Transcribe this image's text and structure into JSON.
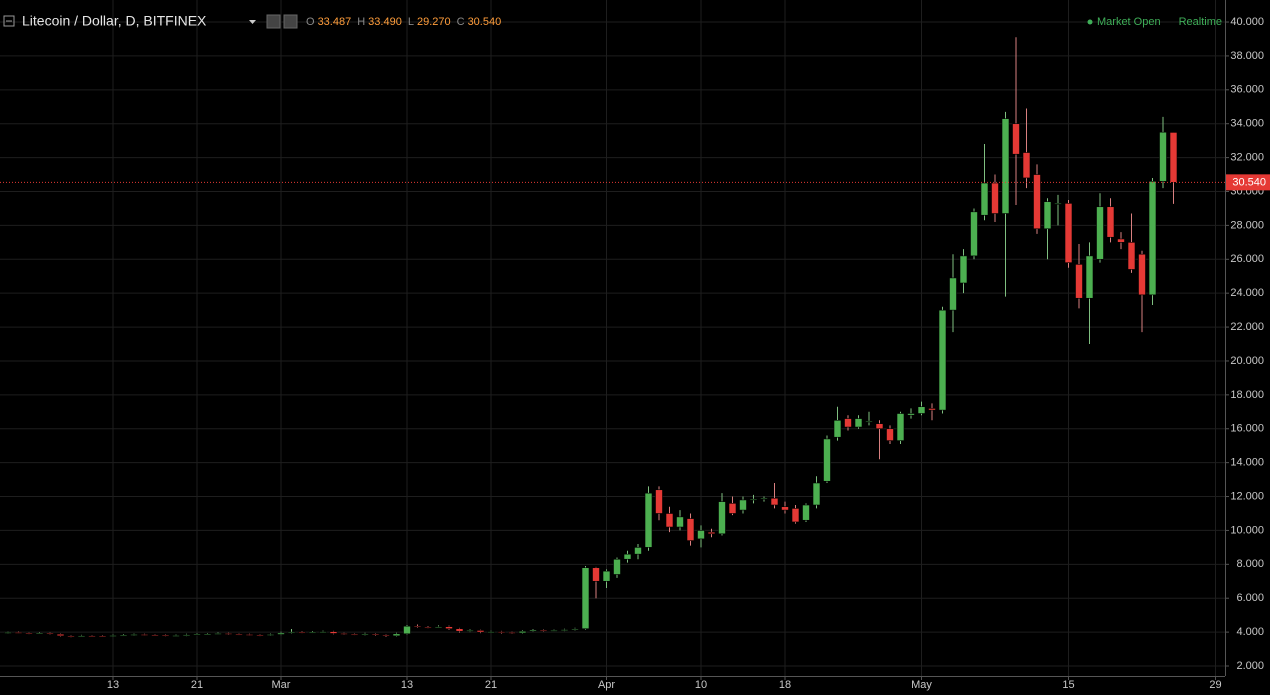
{
  "chart_data": {
    "type": "candlestick",
    "title": "Litecoin / Dollar, D, BITFINEX",
    "status": "Market Open",
    "feed": "Realtime",
    "ohlc_keys": [
      "O",
      "H",
      "L",
      "C"
    ],
    "ohlc_labels": [
      "33.487",
      "33.490",
      "29.270",
      "30.540"
    ],
    "last_price": {
      "value": 30.54,
      "label": "30.540"
    },
    "up_color": "#4caf50",
    "down_color": "#e53935",
    "grid": true,
    "ylim": [
      1.41,
      41.3
    ],
    "yticks": [
      {
        "value": 2,
        "label": "2.000"
      },
      {
        "value": 4,
        "label": "4.000"
      },
      {
        "value": 6,
        "label": "6.000"
      },
      {
        "value": 8,
        "label": "8.000"
      },
      {
        "value": 10,
        "label": "10.000"
      },
      {
        "value": 12,
        "label": "12.000"
      },
      {
        "value": 14,
        "label": "14.000"
      },
      {
        "value": 16,
        "label": "16.000"
      },
      {
        "value": 18,
        "label": "18.000"
      },
      {
        "value": 20,
        "label": "20.000"
      },
      {
        "value": 22,
        "label": "22.000"
      },
      {
        "value": 24,
        "label": "24.000"
      },
      {
        "value": 26,
        "label": "26.000"
      },
      {
        "value": 28,
        "label": "28.000"
      },
      {
        "value": 30,
        "label": "30.000"
      },
      {
        "value": 32,
        "label": "32.000"
      },
      {
        "value": 34,
        "label": "34.000"
      },
      {
        "value": 36,
        "label": "36.000"
      },
      {
        "value": 38,
        "label": "38.000"
      },
      {
        "value": 40,
        "label": "40.000"
      }
    ],
    "categories": [
      null,
      null,
      null,
      null,
      null,
      null,
      null,
      null,
      null,
      null,
      "13",
      null,
      null,
      null,
      null,
      null,
      null,
      null,
      "21",
      null,
      null,
      null,
      null,
      null,
      null,
      null,
      "Mar",
      null,
      null,
      null,
      null,
      null,
      null,
      null,
      null,
      null,
      null,
      null,
      "13",
      null,
      null,
      null,
      null,
      null,
      null,
      null,
      "21",
      null,
      null,
      null,
      null,
      null,
      null,
      null,
      null,
      null,
      null,
      "Apr",
      null,
      null,
      null,
      null,
      null,
      null,
      null,
      null,
      "10",
      null,
      null,
      null,
      null,
      null,
      null,
      null,
      "18",
      null,
      null,
      null,
      null,
      null,
      null,
      null,
      null,
      null,
      null,
      null,
      null,
      "May",
      null,
      null,
      null,
      null,
      null,
      null,
      null,
      null,
      null,
      null,
      null,
      null,
      null,
      "15",
      null,
      null,
      null,
      null,
      null,
      null,
      null,
      null,
      null,
      null,
      null,
      null,
      null,
      "29"
    ],
    "ohlc": [
      [
        3.95,
        4.02,
        3.9,
        3.98
      ],
      [
        3.98,
        4.03,
        3.92,
        3.96
      ],
      [
        3.96,
        4.0,
        3.88,
        3.92
      ],
      [
        3.92,
        3.98,
        3.87,
        3.93
      ],
      [
        3.93,
        3.97,
        3.84,
        3.88
      ],
      [
        3.88,
        3.92,
        3.74,
        3.78
      ],
      [
        3.78,
        3.82,
        3.7,
        3.75
      ],
      [
        3.75,
        3.84,
        3.72,
        3.79
      ],
      [
        3.79,
        3.83,
        3.73,
        3.78
      ],
      [
        3.78,
        3.82,
        3.71,
        3.76
      ],
      [
        3.76,
        3.85,
        3.72,
        3.8
      ],
      [
        3.8,
        3.87,
        3.76,
        3.82
      ],
      [
        3.82,
        3.91,
        3.78,
        3.86
      ],
      [
        3.86,
        3.9,
        3.79,
        3.84
      ],
      [
        3.84,
        3.88,
        3.77,
        3.82
      ],
      [
        3.82,
        3.86,
        3.73,
        3.78
      ],
      [
        3.78,
        3.85,
        3.74,
        3.8
      ],
      [
        3.8,
        3.9,
        3.76,
        3.85
      ],
      [
        3.85,
        3.92,
        3.81,
        3.87
      ],
      [
        3.87,
        3.95,
        3.83,
        3.9
      ],
      [
        3.9,
        3.98,
        3.86,
        3.92
      ],
      [
        3.92,
        3.96,
        3.83,
        3.88
      ],
      [
        3.88,
        3.92,
        3.81,
        3.86
      ],
      [
        3.86,
        3.9,
        3.79,
        3.84
      ],
      [
        3.84,
        3.88,
        3.76,
        3.82
      ],
      [
        3.82,
        3.91,
        3.78,
        3.86
      ],
      [
        3.86,
        4.02,
        3.82,
        3.95
      ],
      [
        3.95,
        4.18,
        3.9,
        4.0
      ],
      [
        4.0,
        4.05,
        3.92,
        3.98
      ],
      [
        3.98,
        4.06,
        3.94,
        4.0
      ],
      [
        4.0,
        4.09,
        3.96,
        4.03
      ],
      [
        4.03,
        4.07,
        3.87,
        3.92
      ],
      [
        3.92,
        3.96,
        3.83,
        3.88
      ],
      [
        3.88,
        3.92,
        3.8,
        3.85
      ],
      [
        3.85,
        3.96,
        3.81,
        3.9
      ],
      [
        3.9,
        3.94,
        3.79,
        3.84
      ],
      [
        3.84,
        3.88,
        3.72,
        3.78
      ],
      [
        3.78,
        3.96,
        3.74,
        3.9
      ],
      [
        3.9,
        4.42,
        3.86,
        4.35
      ],
      [
        4.35,
        4.45,
        4.24,
        4.3
      ],
      [
        4.3,
        4.36,
        4.22,
        4.28
      ],
      [
        4.28,
        4.4,
        4.24,
        4.32
      ],
      [
        4.32,
        4.38,
        4.14,
        4.2
      ],
      [
        4.2,
        4.25,
        3.98,
        4.05
      ],
      [
        4.05,
        4.16,
        4.0,
        4.1
      ],
      [
        4.1,
        4.14,
        3.94,
        4.0
      ],
      [
        4.0,
        4.08,
        3.96,
        4.03
      ],
      [
        4.03,
        4.07,
        3.92,
        3.98
      ],
      [
        3.98,
        4.02,
        3.89,
        3.95
      ],
      [
        3.95,
        4.1,
        3.91,
        4.05
      ],
      [
        4.05,
        4.18,
        4.01,
        4.12
      ],
      [
        4.12,
        4.16,
        4.02,
        4.08
      ],
      [
        4.08,
        4.15,
        4.04,
        4.1
      ],
      [
        4.1,
        4.2,
        4.06,
        4.15
      ],
      [
        4.15,
        4.26,
        4.1,
        4.2
      ],
      [
        4.2,
        7.9,
        4.15,
        7.8
      ],
      [
        7.8,
        7.85,
        6.0,
        7.0
      ],
      [
        7.0,
        7.7,
        6.6,
        7.6
      ],
      [
        7.4,
        8.4,
        7.2,
        8.3
      ],
      [
        8.3,
        8.8,
        8.1,
        8.6
      ],
      [
        8.6,
        9.2,
        8.3,
        9.0
      ],
      [
        9.0,
        12.6,
        8.8,
        12.2
      ],
      [
        12.4,
        12.6,
        10.6,
        11.0
      ],
      [
        11.0,
        11.4,
        9.9,
        10.2
      ],
      [
        10.2,
        11.2,
        10.0,
        10.8
      ],
      [
        10.7,
        11.0,
        9.1,
        9.4
      ],
      [
        9.5,
        10.3,
        9.0,
        10.0
      ],
      [
        9.9,
        10.1,
        9.6,
        9.8
      ],
      [
        9.8,
        12.2,
        9.7,
        11.7
      ],
      [
        11.6,
        12.0,
        10.9,
        11.0
      ],
      [
        11.2,
        12.0,
        11.0,
        11.8
      ],
      [
        11.8,
        12.1,
        11.6,
        11.85
      ],
      [
        11.9,
        12.0,
        11.7,
        11.9
      ],
      [
        11.9,
        12.8,
        11.3,
        11.5
      ],
      [
        11.4,
        11.7,
        11.0,
        11.2
      ],
      [
        11.3,
        11.5,
        10.4,
        10.5
      ],
      [
        10.6,
        11.6,
        10.5,
        11.5
      ],
      [
        11.5,
        13.2,
        11.3,
        12.8
      ],
      [
        12.9,
        15.6,
        12.8,
        15.4
      ],
      [
        15.5,
        17.3,
        15.3,
        16.5
      ],
      [
        16.6,
        16.8,
        15.9,
        16.1
      ],
      [
        16.1,
        16.8,
        16.0,
        16.6
      ],
      [
        16.4,
        17.0,
        16.2,
        16.45
      ],
      [
        16.3,
        16.5,
        14.2,
        16.0
      ],
      [
        16.0,
        16.2,
        15.1,
        15.3
      ],
      [
        15.3,
        17.0,
        15.1,
        16.9
      ],
      [
        16.8,
        17.2,
        16.6,
        16.9
      ],
      [
        16.9,
        17.6,
        16.8,
        17.3
      ],
      [
        17.2,
        17.5,
        16.5,
        17.1
      ],
      [
        17.1,
        23.2,
        16.9,
        23.0
      ],
      [
        23.0,
        26.3,
        21.7,
        24.9
      ],
      [
        24.6,
        26.6,
        24.0,
        26.2
      ],
      [
        26.2,
        29.0,
        26.0,
        28.8
      ],
      [
        28.6,
        32.8,
        28.3,
        30.5
      ],
      [
        30.5,
        31.0,
        28.2,
        28.7
      ],
      [
        28.7,
        34.7,
        23.8,
        34.3
      ],
      [
        34.0,
        39.1,
        29.2,
        32.2
      ],
      [
        32.3,
        34.9,
        30.2,
        30.8
      ],
      [
        31.0,
        31.6,
        27.5,
        27.8
      ],
      [
        27.8,
        29.6,
        26.0,
        29.4
      ],
      [
        29.3,
        29.8,
        28.0,
        29.3
      ],
      [
        29.3,
        29.5,
        25.5,
        25.8
      ],
      [
        25.7,
        26.9,
        23.1,
        23.7
      ],
      [
        23.7,
        27.0,
        21.0,
        26.2
      ],
      [
        26.0,
        29.9,
        25.8,
        29.1
      ],
      [
        29.1,
        29.6,
        27.0,
        27.3
      ],
      [
        27.2,
        27.6,
        26.6,
        27.0
      ],
      [
        27.0,
        28.7,
        25.2,
        25.4
      ],
      [
        26.3,
        26.5,
        21.7,
        23.9
      ],
      [
        23.9,
        30.8,
        23.3,
        30.6
      ],
      [
        30.6,
        34.4,
        30.2,
        33.5
      ],
      [
        33.487,
        33.49,
        29.27,
        30.54
      ],
      null,
      null,
      null,
      null
    ]
  }
}
